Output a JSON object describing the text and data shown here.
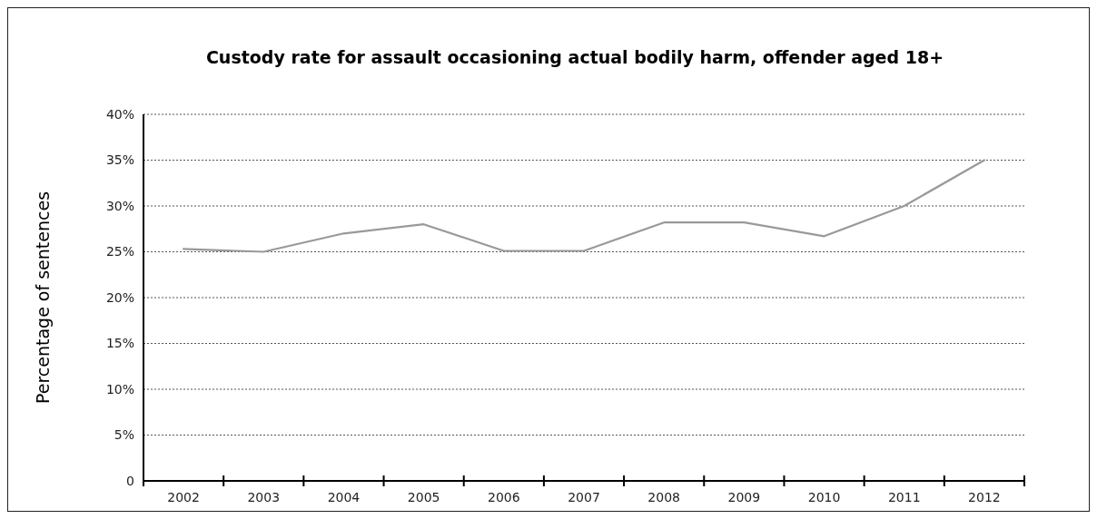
{
  "chart_data": {
    "type": "line",
    "title": "Custody rate for assault occasioning actual bodily harm, offender aged 18+",
    "ylabel": "Percentage of sentences",
    "categories": [
      "2002",
      "2003",
      "2004",
      "2005",
      "2006",
      "2007",
      "2008",
      "2009",
      "2010",
      "2011",
      "2012"
    ],
    "series": [
      {
        "color": "#999999",
        "values": [
          25.3,
          25,
          27,
          28,
          25.1,
          25.1,
          28.2,
          28.2,
          26.7,
          30,
          35
        ]
      }
    ],
    "ylim": [
      0,
      40
    ],
    "yticks": [
      0,
      {
        "value": 5,
        "label": "5%"
      },
      {
        "value": 10,
        "label": "10%"
      },
      {
        "value": 15,
        "label": "15%"
      },
      {
        "value": 20,
        "label": "20%"
      },
      {
        "value": 25,
        "label": "25%"
      },
      {
        "value": 30,
        "label": "30%"
      },
      {
        "value": 35,
        "label": "35%"
      },
      {
        "value": 40,
        "label": "40%"
      }
    ],
    "grid": "y",
    "marker": "none",
    "line_style": "solid"
  }
}
